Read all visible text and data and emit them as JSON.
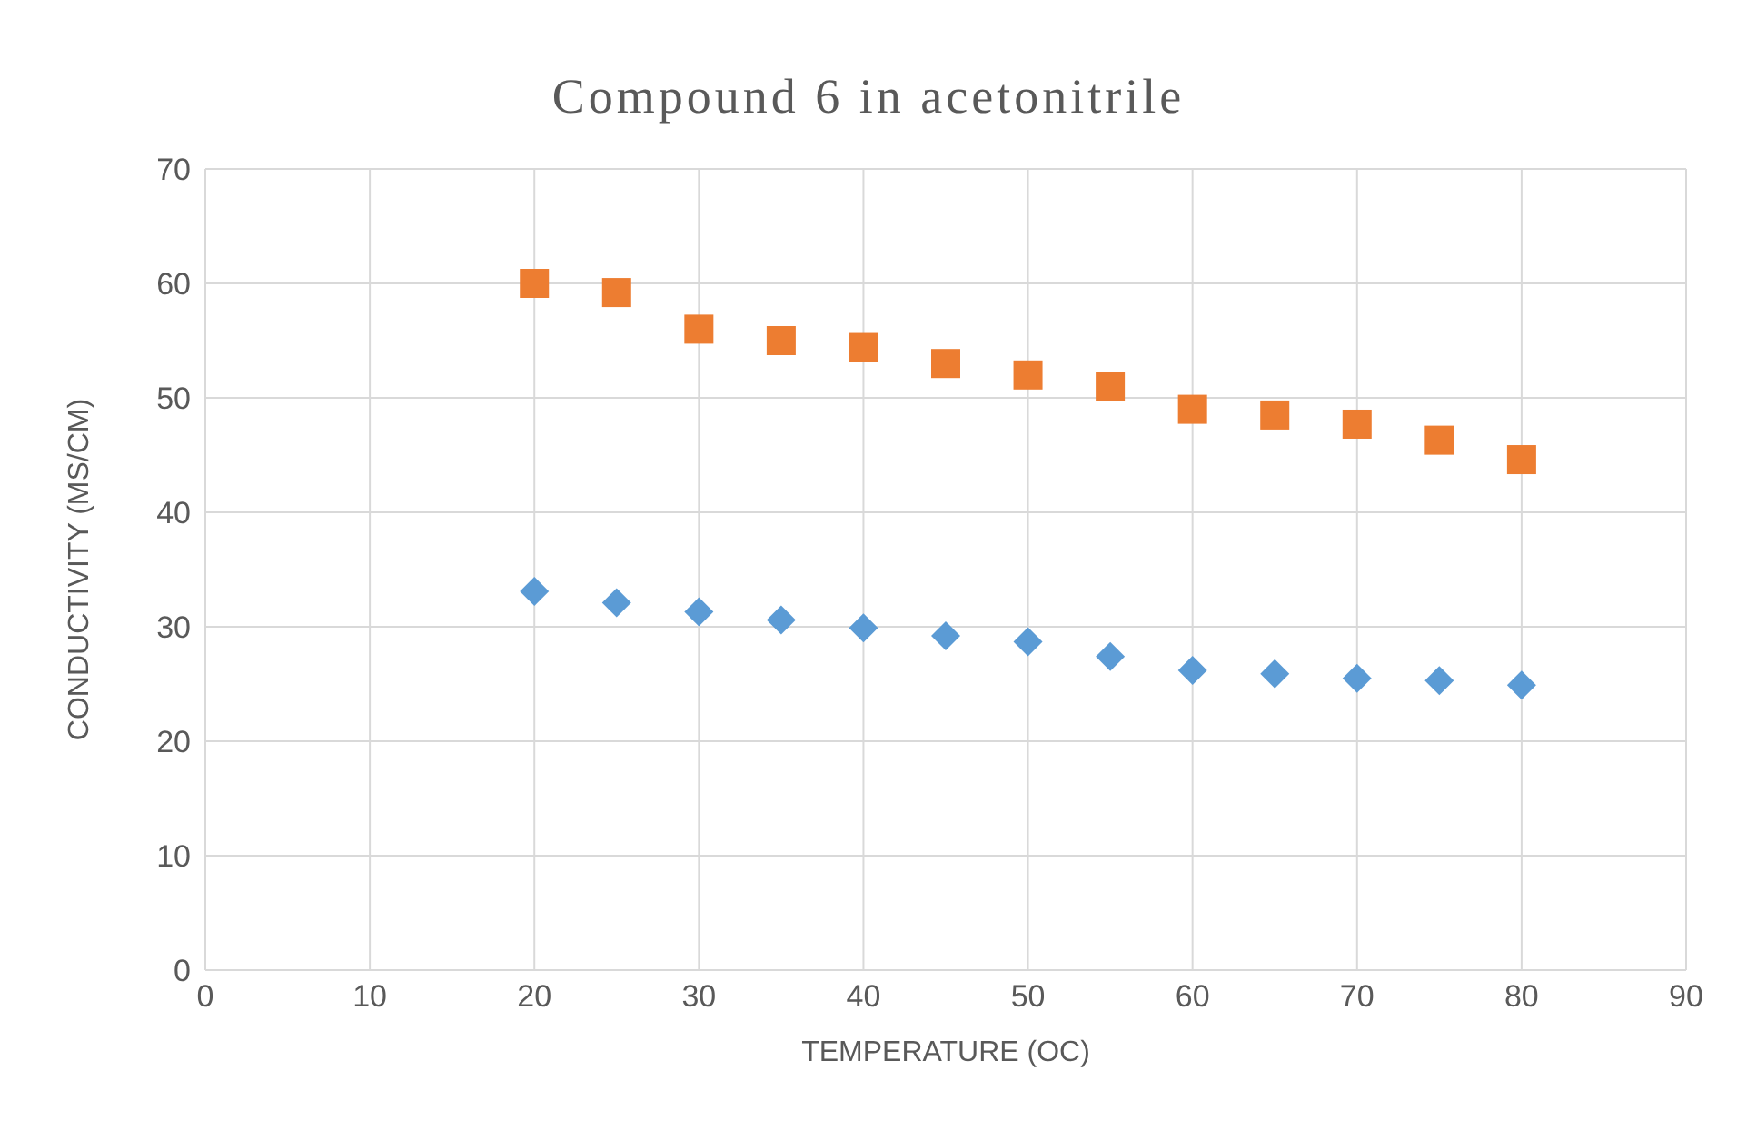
{
  "chart_data": {
    "type": "scatter",
    "title": "Compound 6 in acetonitrile",
    "xlabel": "TEMPERATURE (OC)",
    "ylabel": "CONDUCTIVITY (MS/CM)",
    "x": [
      20,
      25,
      30,
      35,
      40,
      45,
      50,
      55,
      60,
      65,
      70,
      75,
      80
    ],
    "series": [
      {
        "color": "#ed7d31",
        "marker": "square",
        "values": [
          60,
          59.2,
          56,
          55,
          54.4,
          53,
          52,
          51,
          49,
          48.5,
          47.7,
          46.3,
          44.6
        ]
      },
      {
        "color": "#5b9bd5",
        "marker": "diamond",
        "values": [
          33.1,
          32.1,
          31.3,
          30.6,
          29.9,
          29.2,
          28.7,
          27.4,
          26.2,
          25.9,
          25.5,
          25.3,
          24.9
        ]
      }
    ],
    "xlim": [
      0,
      90
    ],
    "xticks": [
      0,
      10,
      20,
      30,
      40,
      50,
      60,
      70,
      80,
      90
    ],
    "ylim": [
      0,
      70
    ],
    "yticks": [
      0,
      10,
      20,
      30,
      40,
      50,
      60,
      70
    ],
    "grid": true,
    "legend": false
  }
}
